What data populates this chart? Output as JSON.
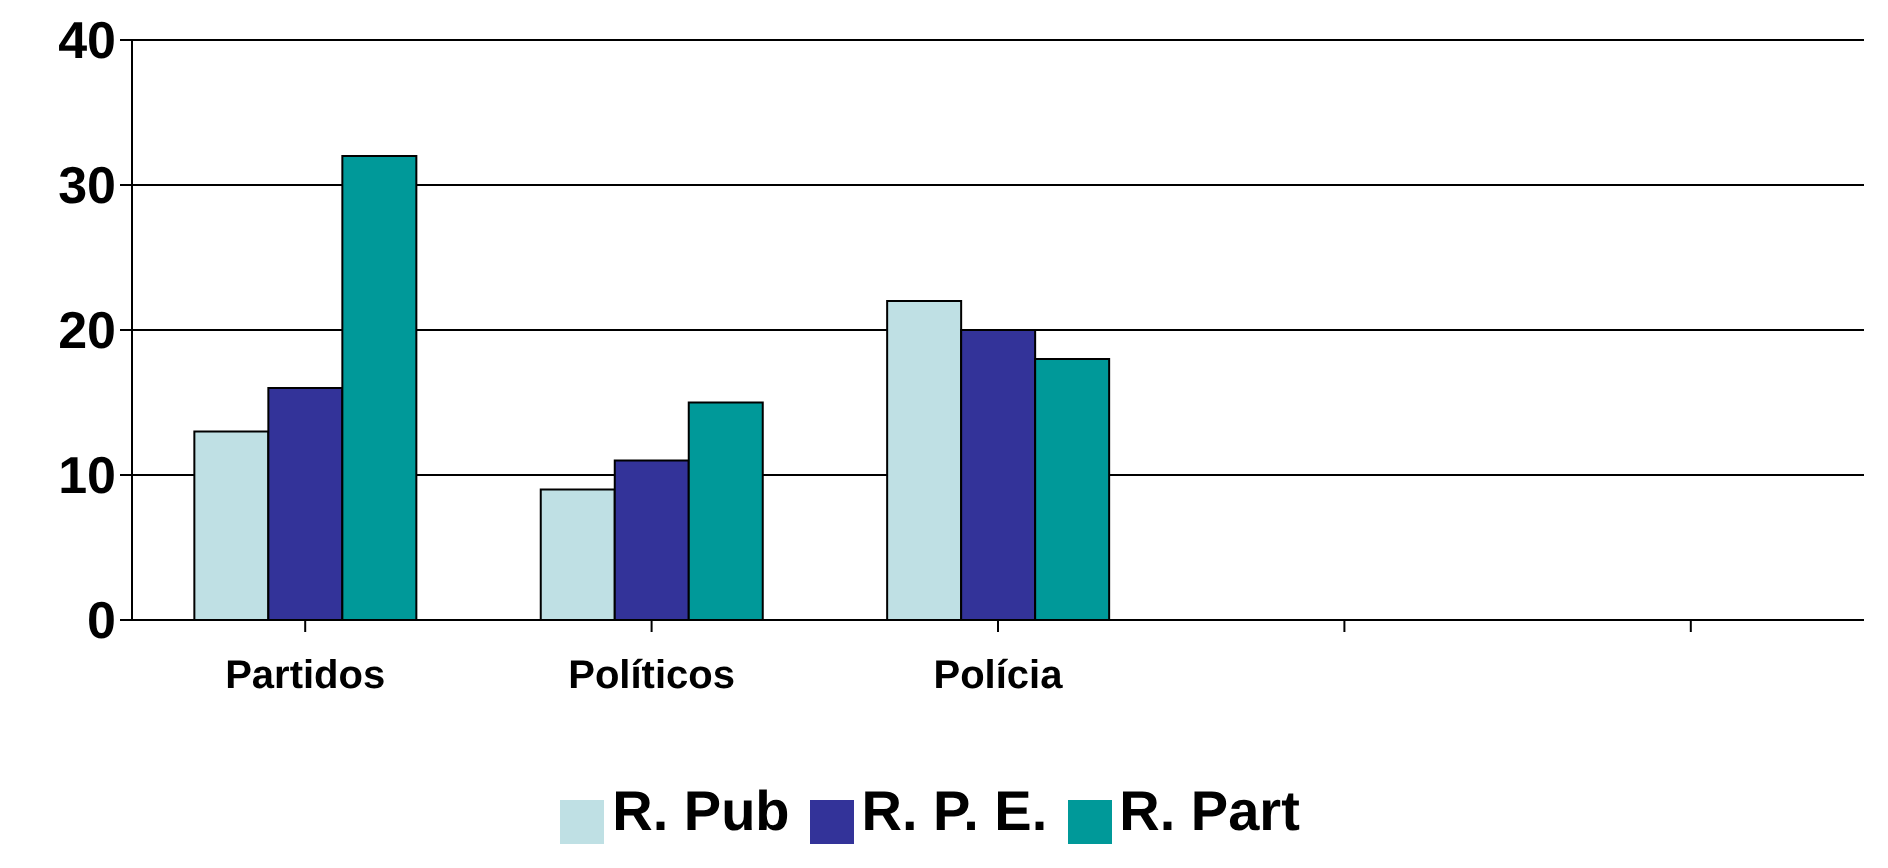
{
  "chart_data": {
    "type": "bar",
    "categories": [
      "Partidos",
      "Políticos",
      "Polícia",
      null,
      null
    ],
    "series": [
      {
        "name": "R. Pub",
        "color": "#bfe0e4",
        "values": [
          13,
          9,
          22,
          null,
          null
        ]
      },
      {
        "name": "R. P. E.",
        "color": "#333399",
        "values": [
          16,
          11,
          20,
          null,
          null
        ]
      },
      {
        "name": "R. Part",
        "color": "#009999",
        "values": [
          32,
          15,
          18,
          null,
          null
        ]
      }
    ],
    "ylim": [
      0,
      40
    ],
    "yticks": [
      0,
      10,
      20,
      30,
      40
    ],
    "grid": "y",
    "legend": "bottom"
  }
}
